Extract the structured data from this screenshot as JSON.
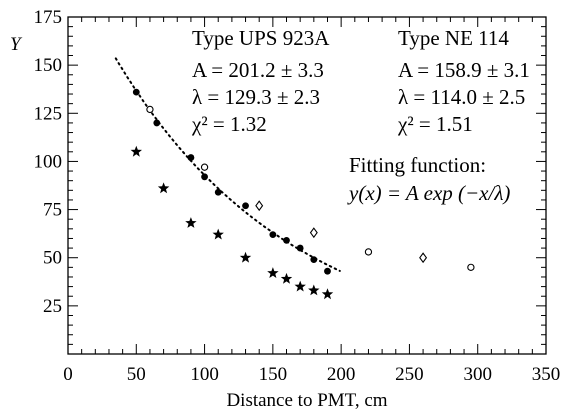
{
  "chart_data": {
    "type": "scatter",
    "xlabel": "Distance to PMT, cm",
    "ylabel": "Y",
    "xlim": [
      0,
      350
    ],
    "ylim": [
      0,
      175
    ],
    "x_ticks": [
      "0",
      "50",
      "100",
      "150",
      "200",
      "250",
      "300",
      "350"
    ],
    "y_ticks": [
      "25",
      "50",
      "75",
      "100",
      "125",
      "150",
      "175"
    ],
    "grid": false,
    "series": [
      {
        "name": "Type UPS 923A",
        "marker": "filled-circle",
        "x": [
          50,
          65,
          90,
          100,
          110,
          130,
          150,
          160,
          170,
          180,
          190
        ],
        "y": [
          136,
          120,
          102,
          92,
          84,
          77,
          62,
          59,
          55,
          49,
          43
        ]
      },
      {
        "name": "Type UPS 923A",
        "marker": "open-circle",
        "x": [
          60,
          100,
          220,
          295
        ],
        "y": [
          127,
          97,
          53,
          45
        ]
      },
      {
        "name": "Type NE 114",
        "marker": "filled-star",
        "x": [
          50,
          70,
          90,
          110,
          130,
          150,
          160,
          170,
          180,
          190
        ],
        "y": [
          105,
          86,
          68,
          62,
          50,
          42,
          39,
          35,
          33,
          31
        ]
      },
      {
        "name": "Type NE 114",
        "marker": "open-diamond",
        "x": [
          140,
          180,
          260
        ],
        "y": [
          77,
          63,
          50
        ]
      }
    ],
    "fit_line": {
      "x": [
        35,
        200
      ],
      "A": 201.2,
      "lambda": 129.3
    },
    "annotations": {
      "ups_title": "Type UPS 923A",
      "ups_A": "A = 201.2 ± 3.3",
      "ups_lambda": "λ = 129.3 ± 2.3",
      "ups_chi": "χ² = 1.32",
      "ne_title": "Type NE 114",
      "ne_A": "A = 158.9 ± 3.1",
      "ne_lambda": "λ = 114.0 ± 2.5",
      "ne_chi": "χ² = 1.51",
      "fit_title": "Fitting function:",
      "fit_formula": "y(x) = A exp (−x/λ)"
    }
  }
}
